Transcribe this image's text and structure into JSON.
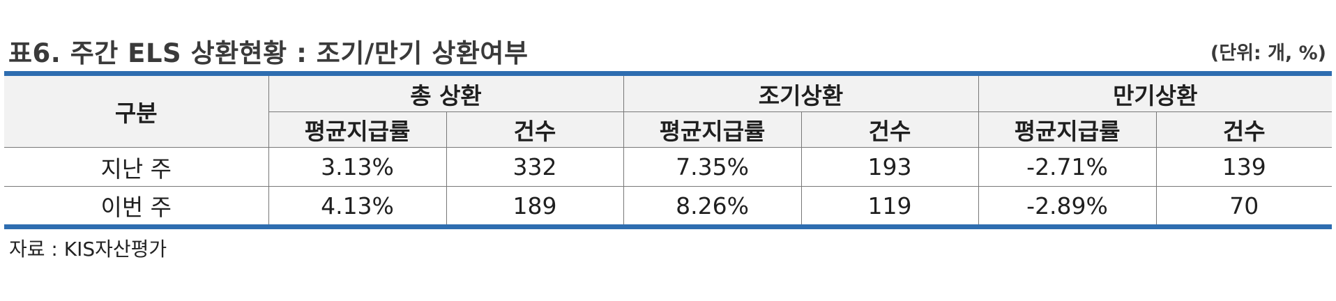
{
  "title": "표6. 주간 ELS 상환현황 : 조기/만기 상환여부",
  "unit": "(단위: 개, %)",
  "table": {
    "row_header": "구분",
    "groups": [
      {
        "label": "총 상환",
        "sub": [
          "평균지급률",
          "건수"
        ]
      },
      {
        "label": "조기상환",
        "sub": [
          "평균지급률",
          "건수"
        ]
      },
      {
        "label": "만기상환",
        "sub": [
          "평균지급률",
          "건수"
        ]
      }
    ],
    "rows": [
      {
        "label": "지난 주",
        "values": [
          "3.13%",
          "332",
          "7.35%",
          "193",
          "-2.71%",
          "139"
        ]
      },
      {
        "label": "이번 주",
        "values": [
          "4.13%",
          "189",
          "8.26%",
          "119",
          "-2.89%",
          "70"
        ]
      }
    ]
  },
  "source": "자료 : KIS자산평가",
  "colors": {
    "rule": "#2e6db0",
    "header_bg": "#f2f2f2",
    "border": "#777777"
  }
}
